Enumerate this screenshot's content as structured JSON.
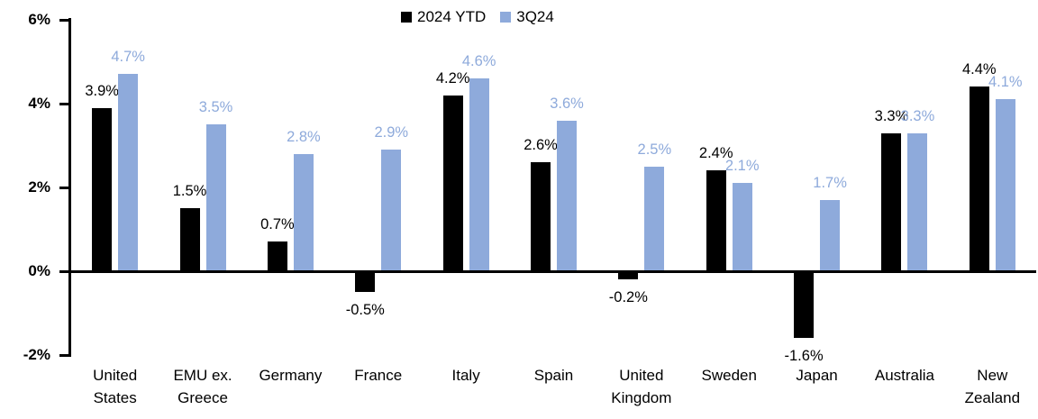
{
  "chart_data": {
    "type": "bar",
    "categories": [
      "United States",
      "EMU ex. Greece",
      "Germany",
      "France",
      "Italy",
      "Spain",
      "United Kingdom",
      "Sweden",
      "Japan",
      "Australia",
      "New Zealand"
    ],
    "categories_lines": [
      [
        "United",
        "States"
      ],
      [
        "EMU ex.",
        "Greece"
      ],
      [
        "Germany"
      ],
      [
        "France"
      ],
      [
        "Italy"
      ],
      [
        "Spain"
      ],
      [
        "United",
        "Kingdom"
      ],
      [
        "Sweden"
      ],
      [
        "Japan"
      ],
      [
        "Australia"
      ],
      [
        "New",
        "Zealand"
      ]
    ],
    "series": [
      {
        "name": "2024 YTD",
        "color": "#000000",
        "values": [
          3.9,
          1.5,
          0.7,
          -0.5,
          4.2,
          2.6,
          -0.2,
          2.4,
          -1.6,
          3.3,
          4.4
        ],
        "labels": [
          "3.9%",
          "1.5%",
          "0.7%",
          "-0.5%",
          "4.2%",
          "2.6%",
          "-0.2%",
          "2.4%",
          "-1.6%",
          "3.3%",
          "4.4%"
        ]
      },
      {
        "name": "3Q24",
        "color": "#8EAADB",
        "values": [
          4.7,
          3.5,
          2.8,
          2.9,
          4.6,
          3.6,
          2.5,
          2.1,
          1.7,
          3.3,
          4.1
        ],
        "labels": [
          "4.7%",
          "3.5%",
          "2.8%",
          "2.9%",
          "4.6%",
          "3.6%",
          "2.5%",
          "2.1%",
          "1.7%",
          "3.3%",
          "4.1%"
        ]
      }
    ],
    "ylim": [
      -2,
      6
    ],
    "yticks": [
      {
        "value": 6,
        "label": "6%"
      },
      {
        "value": 4,
        "label": "4%"
      },
      {
        "value": 2,
        "label": "2%"
      },
      {
        "value": 0,
        "label": "0%"
      },
      {
        "value": -2,
        "label": "-2%"
      }
    ],
    "grid": "off",
    "legend_position": "top-center",
    "axis_color": "#000000",
    "background": "#FFFFFF"
  }
}
